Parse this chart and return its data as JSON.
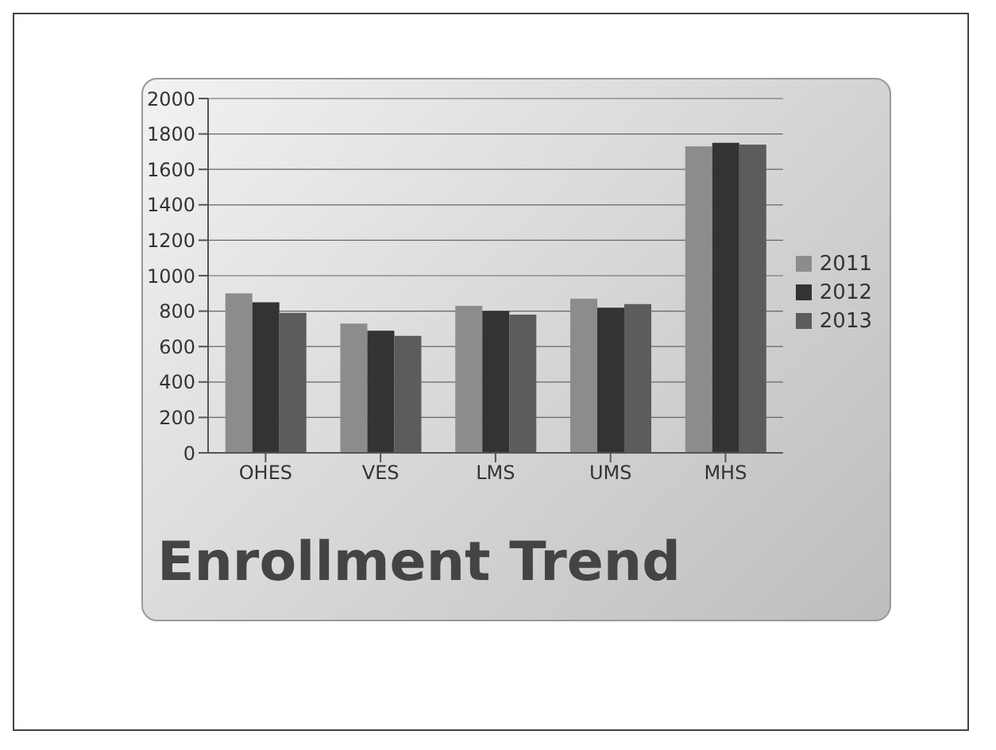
{
  "chart_data": {
    "type": "bar",
    "title": "Enrollment Trend",
    "categories": [
      "OHES",
      "VES",
      "LMS",
      "UMS",
      "MHS"
    ],
    "series": [
      {
        "name": "2011",
        "color": "#8c8c8c",
        "values": [
          900,
          730,
          830,
          870,
          1730
        ]
      },
      {
        "name": "2012",
        "color": "#333333",
        "values": [
          850,
          690,
          800,
          820,
          1750
        ]
      },
      {
        "name": "2013",
        "color": "#5c5c5c",
        "values": [
          790,
          660,
          780,
          840,
          1740
        ]
      }
    ],
    "ylim": [
      0,
      2000
    ],
    "yticks": [
      0,
      200,
      400,
      600,
      800,
      1000,
      1200,
      1400,
      1600,
      1800,
      2000
    ],
    "grid": "y",
    "legend": "right"
  }
}
